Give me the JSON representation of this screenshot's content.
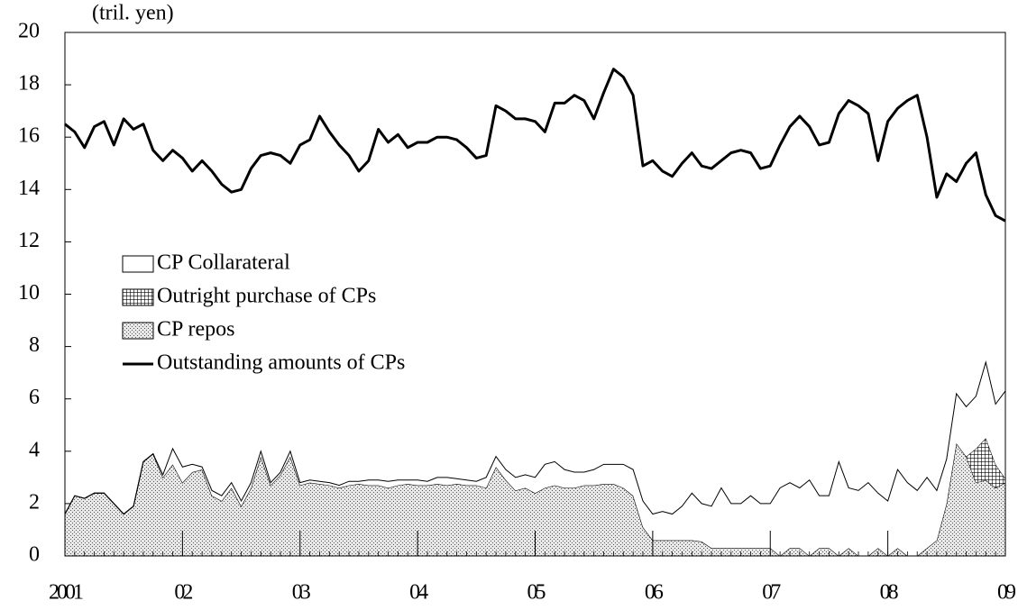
{
  "chart_data": {
    "type": "area",
    "y_label": "(tril. yen)",
    "categories": [
      "2001",
      null,
      null,
      null,
      null,
      null,
      null,
      null,
      null,
      null,
      null,
      null,
      "02",
      null,
      null,
      null,
      null,
      null,
      null,
      null,
      null,
      null,
      null,
      null,
      "03",
      null,
      null,
      null,
      null,
      null,
      null,
      null,
      null,
      null,
      null,
      null,
      "04",
      null,
      null,
      null,
      null,
      null,
      null,
      null,
      null,
      null,
      null,
      null,
      "05",
      null,
      null,
      null,
      null,
      null,
      null,
      null,
      null,
      null,
      null,
      null,
      "06",
      null,
      null,
      null,
      null,
      null,
      null,
      null,
      null,
      null,
      null,
      null,
      "07",
      null,
      null,
      null,
      null,
      null,
      null,
      null,
      null,
      null,
      null,
      null,
      "08",
      null,
      null,
      null,
      null,
      null,
      null,
      null,
      null,
      null,
      null,
      null,
      "09"
    ],
    "ylim": [
      0,
      20
    ],
    "yticks": [
      0,
      2,
      4,
      6,
      8,
      10,
      12,
      14,
      16,
      18,
      20
    ],
    "stacked": true,
    "legend": "center-left",
    "series": [
      {
        "name": "CP repos",
        "type": "area",
        "color": "#bdbdbd",
        "values": [
          1.6,
          2.3,
          2.2,
          2.4,
          2.4,
          2.0,
          1.6,
          1.9,
          3.6,
          3.9,
          3.0,
          3.5,
          2.8,
          3.2,
          3.3,
          2.3,
          2.1,
          2.6,
          1.9,
          2.6,
          3.8,
          2.7,
          3.1,
          3.8,
          2.7,
          2.8,
          2.75,
          2.7,
          2.6,
          2.7,
          2.75,
          2.7,
          2.7,
          2.6,
          2.7,
          2.75,
          2.7,
          2.7,
          2.75,
          2.7,
          2.75,
          2.7,
          2.7,
          2.6,
          3.4,
          2.9,
          2.5,
          2.6,
          2.4,
          2.6,
          2.7,
          2.6,
          2.6,
          2.7,
          2.7,
          2.75,
          2.75,
          2.6,
          2.3,
          1.1,
          0.6,
          0.6,
          0.6,
          0.6,
          0.6,
          0.55,
          0.3,
          0.3,
          0.3,
          0.3,
          0.3,
          0.3,
          0.3,
          0.0,
          0.3,
          0.3,
          0.0,
          0.3,
          0.3,
          0.0,
          0.3,
          0.0,
          0.0,
          0.3,
          0.0,
          0.3,
          0.0,
          0.0,
          0.3,
          0.6,
          2.0,
          4.3,
          3.8,
          2.8,
          2.9,
          2.6,
          2.8
        ]
      },
      {
        "name": "Outright purchase of CPs",
        "type": "area",
        "color": "#555555",
        "values": [
          0,
          0,
          0,
          0,
          0,
          0,
          0,
          0,
          0,
          0,
          0,
          0,
          0,
          0,
          0,
          0,
          0,
          0,
          0,
          0,
          0,
          0,
          0,
          0,
          0,
          0,
          0,
          0,
          0,
          0,
          0,
          0,
          0,
          0,
          0,
          0,
          0,
          0,
          0,
          0,
          0,
          0,
          0,
          0,
          0,
          0,
          0,
          0,
          0,
          0,
          0,
          0,
          0,
          0,
          0,
          0,
          0,
          0,
          0,
          0,
          0,
          0,
          0,
          0,
          0,
          0,
          0,
          0,
          0,
          0,
          0,
          0,
          0,
          0,
          0,
          0,
          0,
          0,
          0,
          0,
          0,
          0,
          0,
          0,
          0,
          0,
          0,
          0,
          0,
          0,
          0,
          0,
          0,
          1.3,
          1.6,
          0.9,
          0.15
        ]
      },
      {
        "name": "CP Collarateral",
        "type": "area",
        "color": "#ffffff",
        "values": [
          0,
          0,
          0,
          0,
          0,
          0,
          0,
          0,
          0,
          0,
          0.1,
          0.6,
          0.6,
          0.3,
          0.1,
          0.2,
          0.2,
          0.2,
          0.2,
          0.2,
          0.2,
          0.1,
          0.1,
          0.2,
          0.1,
          0.1,
          0.1,
          0.1,
          0.1,
          0.15,
          0.1,
          0.2,
          0.2,
          0.25,
          0.2,
          0.15,
          0.2,
          0.15,
          0.25,
          0.3,
          0.2,
          0.2,
          0.15,
          0.4,
          0.4,
          0.4,
          0.5,
          0.5,
          0.6,
          0.9,
          0.9,
          0.7,
          0.6,
          0.5,
          0.6,
          0.75,
          0.75,
          0.9,
          1.0,
          1.0,
          1.0,
          1.1,
          1.0,
          1.3,
          1.8,
          1.45,
          1.6,
          2.3,
          1.7,
          1.7,
          2.0,
          1.7,
          1.7,
          2.6,
          2.5,
          2.3,
          2.9,
          2.0,
          2.0,
          3.6,
          2.3,
          2.5,
          2.8,
          2.1,
          2.1,
          3.0,
          2.8,
          2.5,
          2.7,
          1.9,
          1.7,
          1.9,
          1.9,
          2.0,
          2.9,
          2.3,
          3.35
        ]
      },
      {
        "name": "Outstanding amounts of CPs",
        "type": "line",
        "color": "#000000",
        "values": [
          16.5,
          16.2,
          15.6,
          16.4,
          16.6,
          15.7,
          16.7,
          16.3,
          16.5,
          15.5,
          15.1,
          15.5,
          15.2,
          14.7,
          15.1,
          14.7,
          14.2,
          13.9,
          14.0,
          14.8,
          15.3,
          15.4,
          15.3,
          15.0,
          15.7,
          15.9,
          16.8,
          16.2,
          15.7,
          15.3,
          14.7,
          15.1,
          16.3,
          15.8,
          16.1,
          15.6,
          15.8,
          15.8,
          16.0,
          16.0,
          15.9,
          15.6,
          15.2,
          15.3,
          17.2,
          17.0,
          16.7,
          16.7,
          16.6,
          16.2,
          17.3,
          17.3,
          17.6,
          17.4,
          16.7,
          17.7,
          18.6,
          18.3,
          17.6,
          14.9,
          15.1,
          14.7,
          14.5,
          15.0,
          15.4,
          14.9,
          14.8,
          15.1,
          15.4,
          15.5,
          15.4,
          14.8,
          14.9,
          15.7,
          16.4,
          16.8,
          16.4,
          15.7,
          15.8,
          16.9,
          17.4,
          17.2,
          16.9,
          15.1,
          16.6,
          17.1,
          17.4,
          17.6,
          16.0,
          13.7,
          14.6,
          14.3,
          15.0,
          15.4,
          13.8,
          13.0,
          12.8
        ]
      }
    ]
  }
}
